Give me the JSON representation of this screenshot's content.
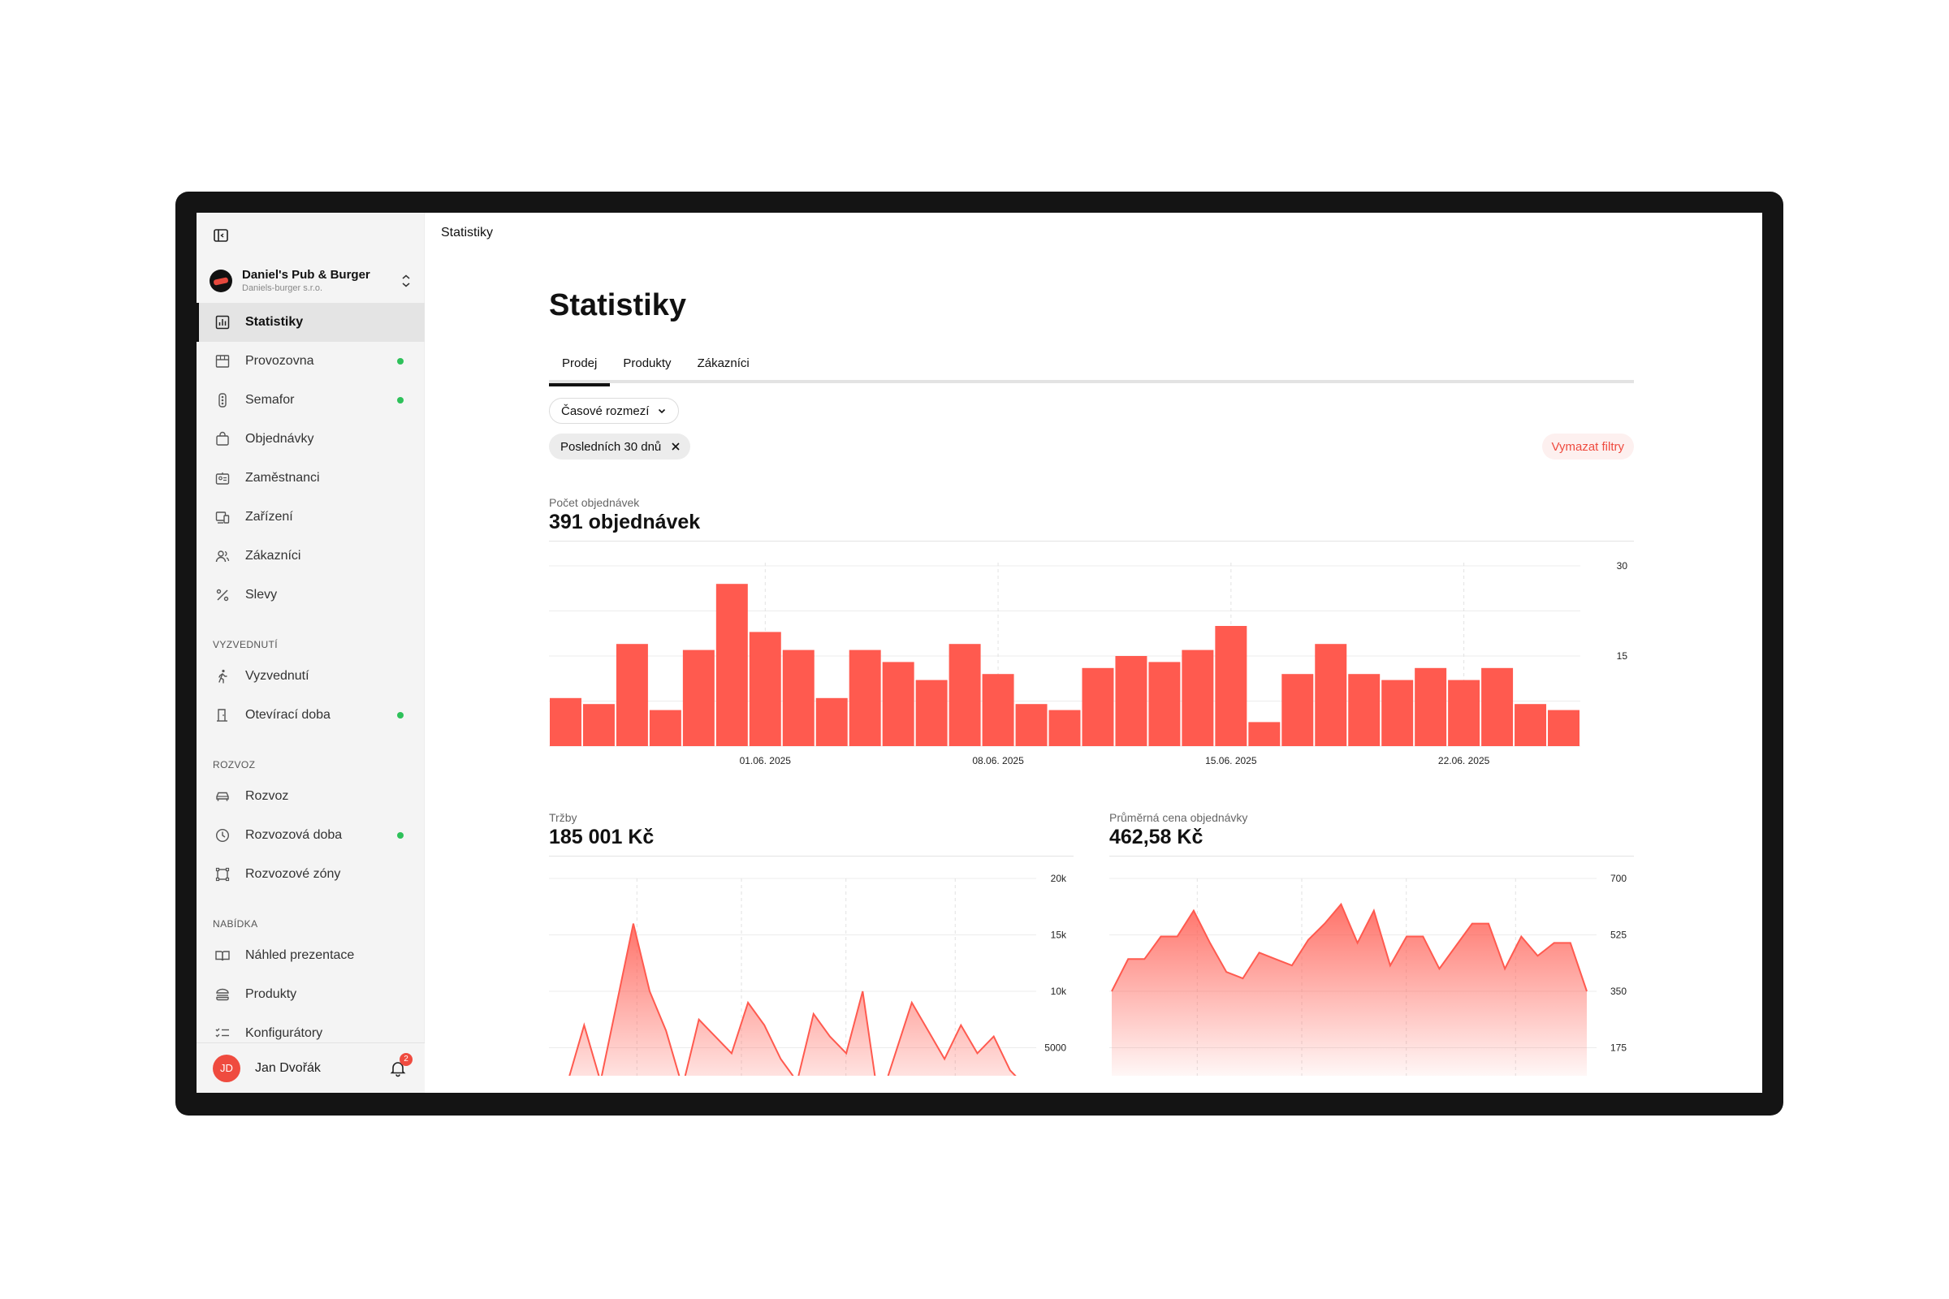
{
  "sidebar": {
    "org_name": "Daniel's Pub & Burger",
    "org_sub": "Daniels-burger s.r.o.",
    "items": [
      {
        "label": "Statistiky",
        "icon": "chart-icon",
        "active": true,
        "dot": false
      },
      {
        "label": "Provozovna",
        "icon": "store-icon",
        "dot": true
      },
      {
        "label": "Semafor",
        "icon": "traffic-light-icon",
        "dot": true
      },
      {
        "label": "Objednávky",
        "icon": "bag-icon",
        "dot": false
      },
      {
        "label": "Zaměstnanci",
        "icon": "id-card-icon",
        "dot": false
      },
      {
        "label": "Zařízení",
        "icon": "devices-icon",
        "dot": false
      },
      {
        "label": "Zákazníci",
        "icon": "users-icon",
        "dot": false
      },
      {
        "label": "Slevy",
        "icon": "percent-icon",
        "dot": false
      }
    ],
    "section_pickup": "VYZVEDNUTÍ",
    "pickup_items": [
      {
        "label": "Vyzvednutí",
        "icon": "walking-icon",
        "dot": false
      },
      {
        "label": "Otevírací doba",
        "icon": "door-icon",
        "dot": true
      }
    ],
    "section_delivery": "ROZVOZ",
    "delivery_items": [
      {
        "label": "Rozvoz",
        "icon": "car-icon",
        "dot": false
      },
      {
        "label": "Rozvozová doba",
        "icon": "clock-icon",
        "dot": true
      },
      {
        "label": "Rozvozové zóny",
        "icon": "zone-icon",
        "dot": false
      }
    ],
    "section_menu": "NABÍDKA",
    "menu_items": [
      {
        "label": "Náhled prezentace",
        "icon": "book-icon",
        "dot": false
      },
      {
        "label": "Produkty",
        "icon": "burger-icon",
        "dot": false
      },
      {
        "label": "Konfigurátory",
        "icon": "checklist-icon",
        "dot": false
      }
    ],
    "user_initials": "JD",
    "user_name": "Jan Dvořák",
    "notification_count": "2"
  },
  "topbar": {
    "breadcrumb": "Statistiky"
  },
  "page": {
    "title": "Statistiky",
    "tabs": [
      "Prodej",
      "Produkty",
      "Zákazníci"
    ],
    "time_range_label": "Časové rozmezí",
    "active_filter": "Posledních 30 dnů",
    "clear_filters": "Vymazat filtry"
  },
  "metrics": {
    "orders_label": "Počet objednávek",
    "orders_value": "391 objednávek",
    "revenue_label": "Tržby",
    "revenue_value": "185 001 Kč",
    "avg_label": "Průměrná cena objednávky",
    "avg_value": "462,58 Kč"
  },
  "colors": {
    "accent": "#ff5a4f",
    "dot_green": "#2ec15a"
  },
  "chart_data": [
    {
      "type": "bar",
      "values": [
        8,
        7,
        17,
        6,
        16,
        27,
        19,
        16,
        8,
        16,
        14,
        11,
        17,
        12,
        7,
        6,
        13,
        15,
        14,
        16,
        20,
        4,
        12,
        17,
        12,
        11,
        13,
        11,
        13,
        7,
        6
      ],
      "x_tick_labels": [
        "01.06. 2025",
        "08.06. 2025",
        "15.06. 2025",
        "22.06. 2025"
      ],
      "x_tick_indices": [
        6,
        13,
        20,
        27
      ],
      "y_ticks": [
        "30",
        "15"
      ],
      "ylim": [
        0,
        30
      ]
    },
    {
      "type": "area",
      "values": [
        1000,
        2000,
        7000,
        2000,
        9000,
        16000,
        10000,
        6500,
        1500,
        7500,
        6000,
        4500,
        9000,
        7000,
        4000,
        2000,
        8000,
        6000,
        4500,
        10000,
        0,
        4500,
        9000,
        6500,
        4000,
        7000,
        4500,
        6000,
        3000,
        1500
      ],
      "y_ticks": [
        "20k",
        "15k",
        "10k",
        "5000"
      ],
      "ylim": [
        0,
        20000
      ]
    },
    {
      "type": "area",
      "values": [
        350,
        450,
        450,
        520,
        520,
        600,
        500,
        410,
        390,
        470,
        450,
        430,
        510,
        560,
        620,
        500,
        600,
        430,
        520,
        520,
        420,
        490,
        560,
        560,
        420,
        520,
        460,
        500,
        500,
        350
      ],
      "y_ticks": [
        "700",
        "525",
        "350",
        "175"
      ],
      "ylim": [
        0,
        700
      ]
    }
  ]
}
